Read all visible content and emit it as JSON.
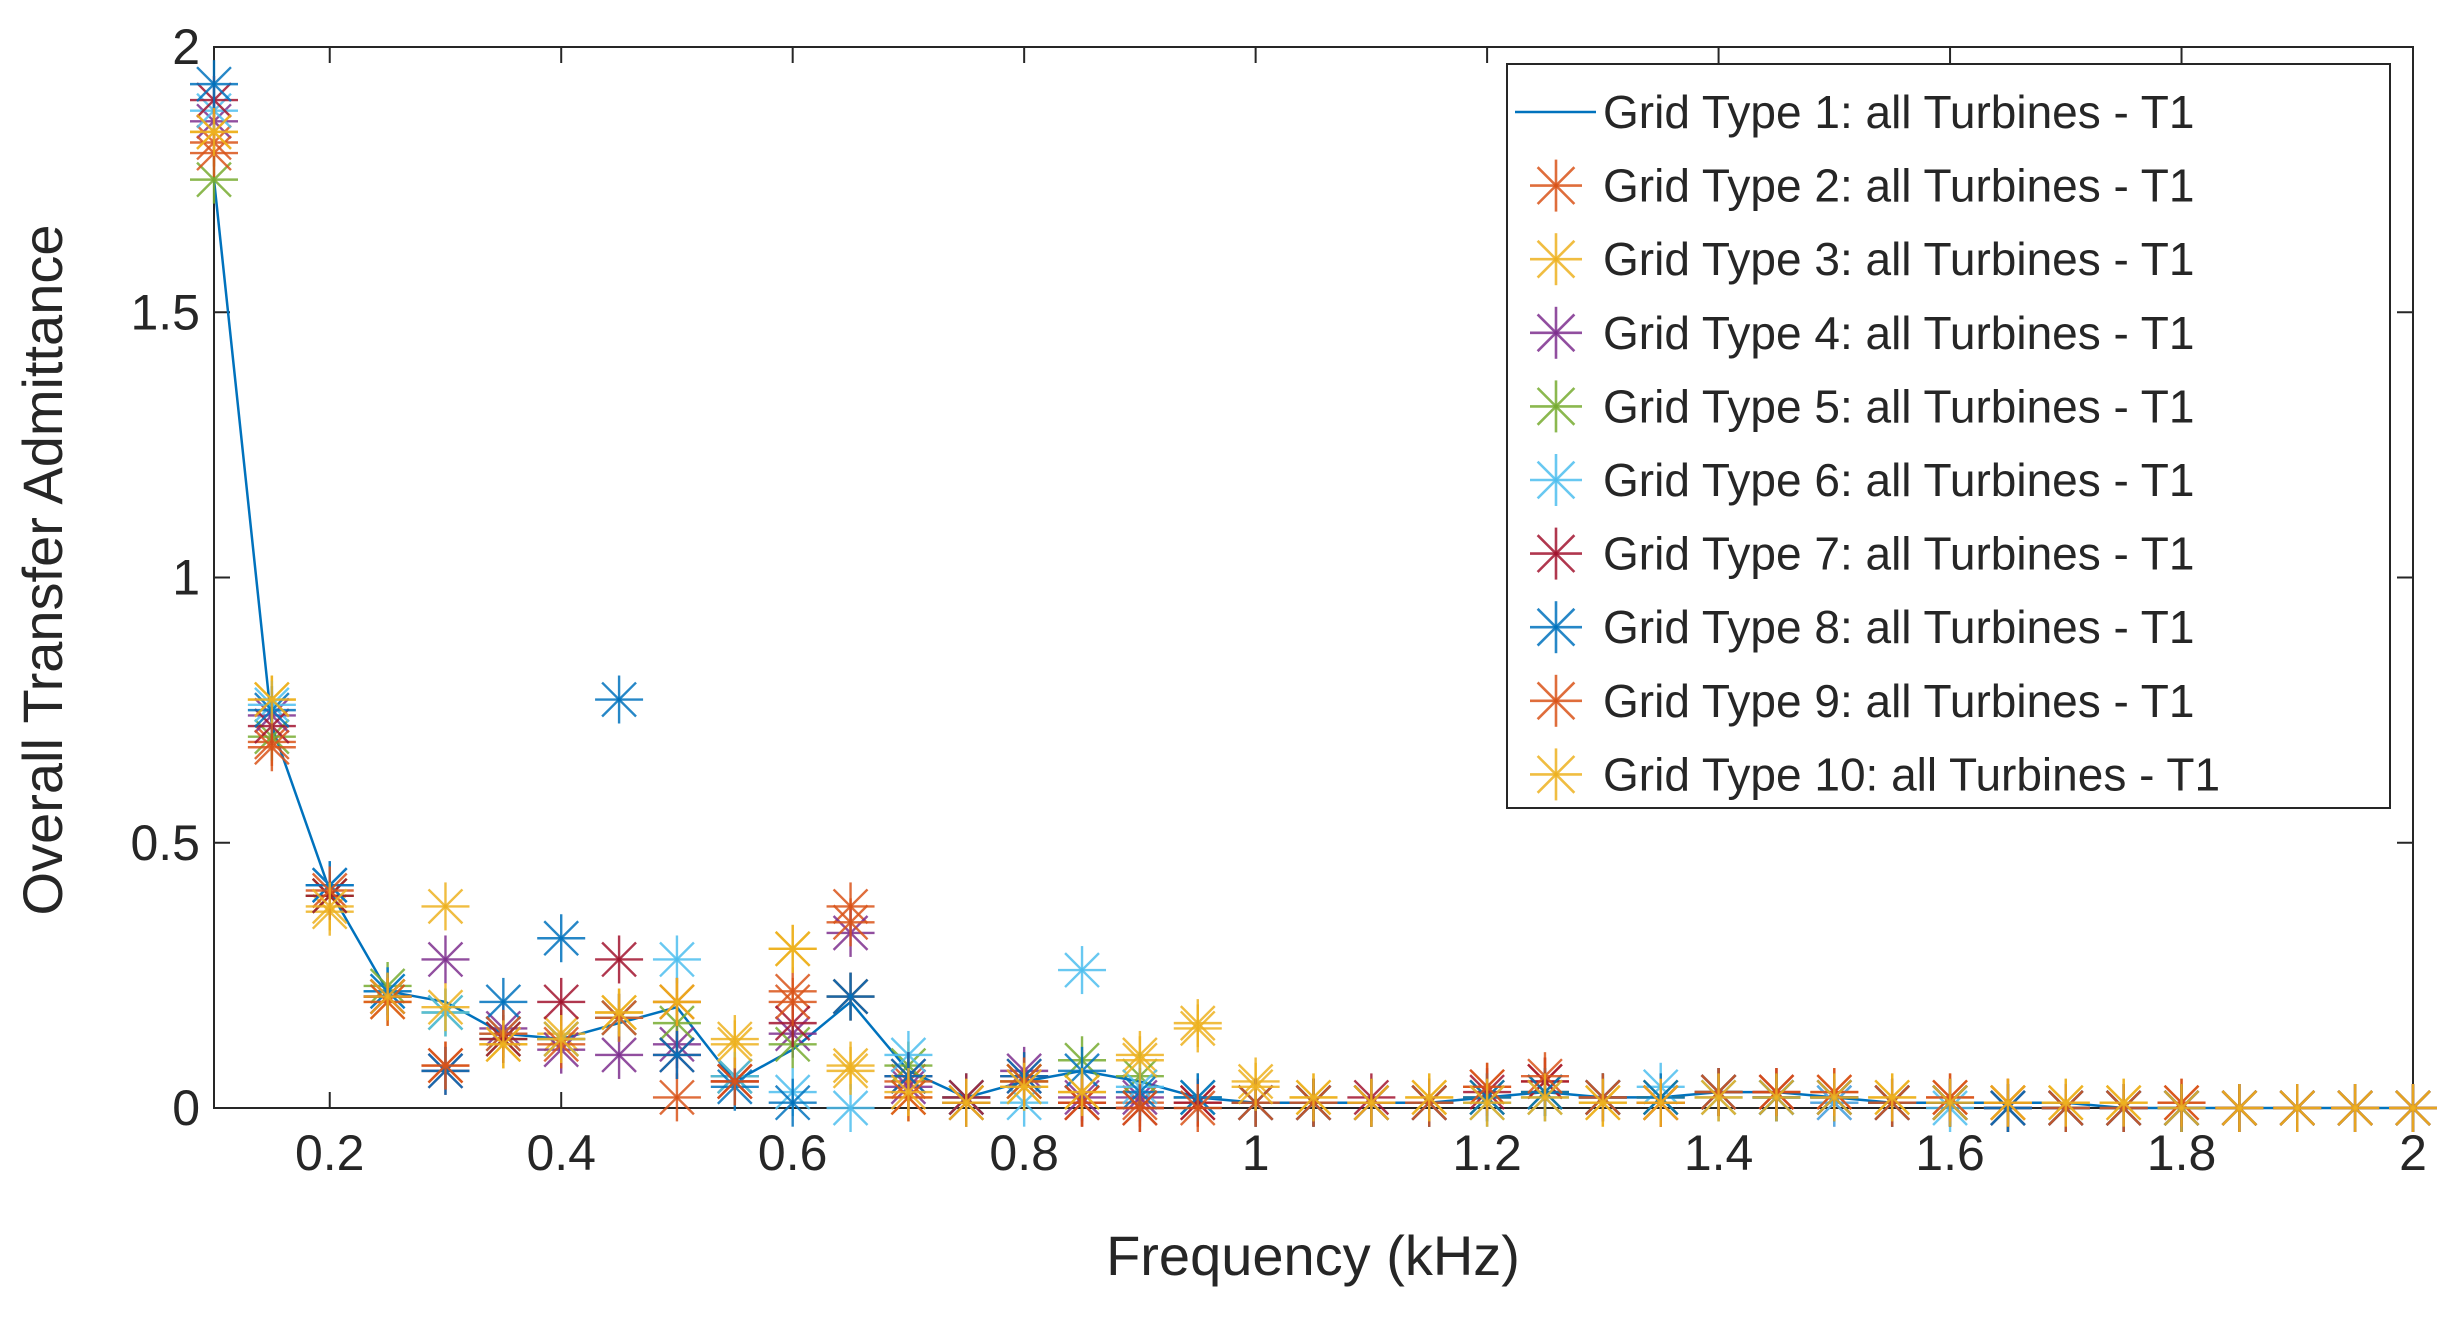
{
  "chart_data": {
    "type": "scatter",
    "title": "",
    "xlabel": "Frequency (kHz)",
    "ylabel": "Overall Transfer Admittance",
    "xlim": [
      0.1,
      2
    ],
    "ylim": [
      0,
      2
    ],
    "xticks": [
      "0.2",
      "0.4",
      "0.6",
      "0.8",
      "1",
      "1.2",
      "1.4",
      "1.6",
      "1.8",
      "2"
    ],
    "yticks": [
      "0",
      "0.5",
      "1",
      "1.5",
      "2"
    ],
    "grid": false,
    "box": true,
    "legend_position": "top-right",
    "x": [
      0.1,
      0.15,
      0.2,
      0.25,
      0.3,
      0.35,
      0.4,
      0.45,
      0.5,
      0.55,
      0.6,
      0.65,
      0.7,
      0.75,
      0.8,
      0.85,
      0.9,
      0.95,
      1.0,
      1.05,
      1.1,
      1.15,
      1.2,
      1.25,
      1.3,
      1.35,
      1.4,
      1.45,
      1.5,
      1.55,
      1.6,
      1.65,
      1.7,
      1.75,
      1.8,
      1.85,
      1.9,
      1.95,
      2.0
    ],
    "series": [
      {
        "name": "Grid Type 1: all Turbines - T1",
        "style": "line",
        "color": "#0072BD",
        "values": [
          1.75,
          0.72,
          0.41,
          0.22,
          0.2,
          0.14,
          0.13,
          0.16,
          0.19,
          0.05,
          0.11,
          0.2,
          0.07,
          0.02,
          0.05,
          0.07,
          0.05,
          0.02,
          0.01,
          0.01,
          0.01,
          0.01,
          0.02,
          0.03,
          0.02,
          0.02,
          0.03,
          0.03,
          0.02,
          0.01,
          0.01,
          0.01,
          0.01,
          0.0,
          0.0,
          0.0,
          0.0,
          0.0,
          0.0
        ]
      },
      {
        "name": "Grid Type 2: all Turbines - T1",
        "style": "marker",
        "color": "#D95319",
        "values": [
          1.82,
          0.69,
          0.4,
          0.21,
          0.08,
          0.14,
          0.13,
          0.17,
          0.02,
          0.05,
          0.22,
          0.38,
          0.05,
          0.02,
          0.05,
          0.01,
          0.01,
          0.01,
          0.01,
          0.01,
          0.01,
          0.01,
          0.04,
          0.05,
          0.02,
          0.01,
          0.03,
          0.03,
          0.03,
          0.01,
          0.02,
          0.01,
          0.0,
          0.0,
          0.01,
          0.0,
          0.0,
          0.0,
          0.0
        ]
      },
      {
        "name": "Grid Type 3: all Turbines - T1",
        "style": "marker",
        "color": "#EDB120",
        "values": [
          1.84,
          0.77,
          0.37,
          0.2,
          0.38,
          0.12,
          0.14,
          0.18,
          0.2,
          0.13,
          0.3,
          0.08,
          0.02,
          0.01,
          0.04,
          0.03,
          0.1,
          0.16,
          0.05,
          0.02,
          0.01,
          0.02,
          0.01,
          0.02,
          0.01,
          0.01,
          0.02,
          0.02,
          0.02,
          0.02,
          0.01,
          0.01,
          0.01,
          0.01,
          0.0,
          0.0,
          0.0,
          0.0,
          0.0
        ]
      },
      {
        "name": "Grid Type 4: all Turbines - T1",
        "style": "marker",
        "color": "#7E2F8E",
        "values": [
          1.86,
          0.74,
          0.42,
          0.21,
          0.28,
          0.15,
          0.11,
          0.1,
          0.12,
          0.06,
          0.14,
          0.33,
          0.04,
          0.02,
          0.07,
          0.02,
          0.02,
          0.02,
          0.01,
          0.01,
          0.01,
          0.01,
          0.02,
          0.03,
          0.02,
          0.02,
          0.03,
          0.02,
          0.01,
          0.01,
          0.01,
          0.0,
          0.0,
          0.0,
          0.0,
          0.0,
          0.0,
          0.0,
          0.0
        ]
      },
      {
        "name": "Grid Type 5: all Turbines - T1",
        "style": "marker",
        "color": "#77AC30",
        "values": [
          1.75,
          0.7,
          0.4,
          0.23,
          0.18,
          0.13,
          0.13,
          0.17,
          0.16,
          0.06,
          0.12,
          0.21,
          0.08,
          0.02,
          0.05,
          0.09,
          0.06,
          0.02,
          0.01,
          0.01,
          0.01,
          0.01,
          0.02,
          0.03,
          0.02,
          0.02,
          0.03,
          0.02,
          0.02,
          0.01,
          0.01,
          0.0,
          0.0,
          0.0,
          0.0,
          0.0,
          0.0,
          0.0,
          0.0
        ]
      },
      {
        "name": "Grid Type 6: all Turbines - T1",
        "style": "marker",
        "color": "#4DBEEE",
        "values": [
          1.88,
          0.76,
          0.42,
          0.22,
          0.18,
          0.14,
          0.13,
          0.17,
          0.28,
          0.06,
          0.03,
          0.0,
          0.1,
          0.02,
          0.01,
          0.26,
          0.04,
          0.02,
          0.01,
          0.01,
          0.01,
          0.01,
          0.01,
          0.02,
          0.02,
          0.04,
          0.02,
          0.02,
          0.01,
          0.01,
          0.0,
          0.0,
          0.0,
          0.0,
          0.0,
          0.0,
          0.0,
          0.0,
          0.0
        ]
      },
      {
        "name": "Grid Type 7: all Turbines - T1",
        "style": "marker",
        "color": "#A2142F",
        "values": [
          1.9,
          0.72,
          0.4,
          0.21,
          0.07,
          0.13,
          0.2,
          0.28,
          0.1,
          0.05,
          0.16,
          0.21,
          0.06,
          0.02,
          0.06,
          0.01,
          0.0,
          0.01,
          0.01,
          0.01,
          0.02,
          0.01,
          0.03,
          0.05,
          0.02,
          0.01,
          0.03,
          0.03,
          0.02,
          0.01,
          0.01,
          0.0,
          0.0,
          0.0,
          0.0,
          0.0,
          0.0,
          0.0,
          0.0
        ]
      },
      {
        "name": "Grid Type 8: all Turbines - T1",
        "style": "marker",
        "color": "#0072BD",
        "values": [
          1.93,
          0.75,
          0.42,
          0.22,
          0.07,
          0.2,
          0.32,
          0.77,
          0.1,
          0.04,
          0.01,
          0.21,
          0.06,
          0.01,
          0.06,
          0.07,
          0.03,
          0.02,
          0.01,
          0.01,
          0.01,
          0.01,
          0.02,
          0.03,
          0.02,
          0.02,
          0.03,
          0.02,
          0.02,
          0.01,
          0.01,
          0.0,
          0.0,
          0.0,
          0.0,
          0.0,
          0.0,
          0.0,
          0.0
        ]
      },
      {
        "name": "Grid Type 9: all Turbines - T1",
        "style": "marker",
        "color": "#D95319",
        "values": [
          1.8,
          0.68,
          0.41,
          0.2,
          0.08,
          0.14,
          0.12,
          0.17,
          0.2,
          0.05,
          0.2,
          0.35,
          0.02,
          0.01,
          0.05,
          0.01,
          0.0,
          0.0,
          0.01,
          0.01,
          0.01,
          0.01,
          0.04,
          0.06,
          0.02,
          0.01,
          0.03,
          0.03,
          0.03,
          0.01,
          0.02,
          0.01,
          0.0,
          0.0,
          0.01,
          0.0,
          0.0,
          0.0,
          0.0
        ]
      },
      {
        "name": "Grid Type 10: all Turbines - T1",
        "style": "marker",
        "color": "#EDB120",
        "values": [
          1.84,
          0.77,
          0.38,
          0.21,
          0.19,
          0.12,
          0.13,
          0.18,
          0.2,
          0.12,
          0.3,
          0.07,
          0.03,
          0.01,
          0.04,
          0.03,
          0.09,
          0.15,
          0.04,
          0.02,
          0.01,
          0.02,
          0.01,
          0.02,
          0.01,
          0.01,
          0.02,
          0.02,
          0.02,
          0.02,
          0.01,
          0.01,
          0.01,
          0.01,
          0.0,
          0.0,
          0.0,
          0.0,
          0.0
        ]
      }
    ]
  }
}
